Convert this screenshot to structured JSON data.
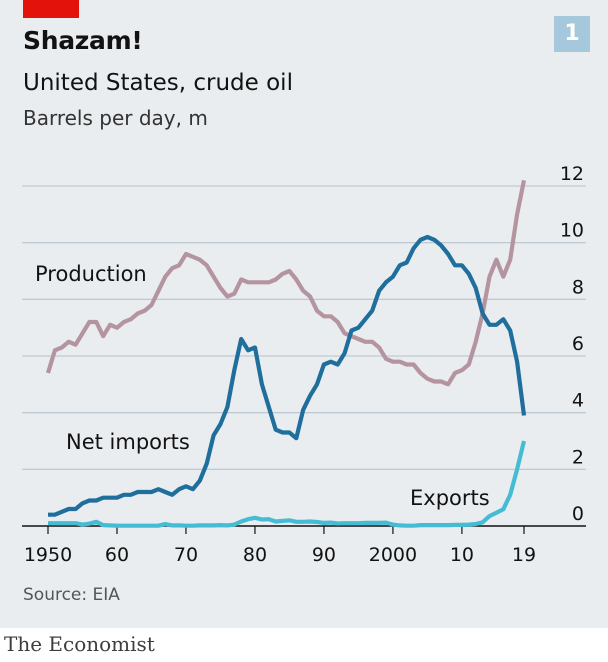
{
  "header": {
    "badge_number": "1",
    "title": "Shazam!",
    "subtitle": "United States, crude oil",
    "unit": "Barrels per day, m"
  },
  "footer": {
    "source": "Source: EIA",
    "brand": "The Economist"
  },
  "colors": {
    "background": "#e9edf0",
    "accent_tag": "#e3120b",
    "badge": "#a6c8dd",
    "production": "#b4949e",
    "net_imports": "#1f6e9c",
    "exports": "#45bcd4"
  },
  "chart_data": {
    "type": "line",
    "title": "Shazam!",
    "subtitle": "United States, crude oil",
    "ylabel": "Barrels per day, m",
    "xlim": [
      1950,
      2019
    ],
    "ylim": [
      0,
      12
    ],
    "x_ticks": [
      1950,
      1960,
      1970,
      1980,
      1990,
      2000,
      2010,
      2019
    ],
    "x_tick_labels": [
      "1950",
      "60",
      "70",
      "80",
      "90",
      "2000",
      "10",
      "19"
    ],
    "y_ticks": [
      0,
      2,
      4,
      6,
      8,
      10,
      12
    ],
    "y_tick_labels": [
      "0",
      "2",
      "4",
      "6",
      "8",
      "10",
      "12"
    ],
    "grid": true,
    "legend": "direct labels on lines",
    "series": [
      {
        "name": "Production",
        "color": "#b4949e",
        "x": [
          1950,
          1951,
          1952,
          1953,
          1954,
          1955,
          1956,
          1957,
          1958,
          1959,
          1960,
          1961,
          1962,
          1963,
          1964,
          1965,
          1966,
          1967,
          1968,
          1969,
          1970,
          1971,
          1972,
          1973,
          1974,
          1975,
          1976,
          1977,
          1978,
          1979,
          1980,
          1981,
          1982,
          1983,
          1984,
          1985,
          1986,
          1987,
          1988,
          1989,
          1990,
          1991,
          1992,
          1993,
          1994,
          1995,
          1996,
          1997,
          1998,
          1999,
          2000,
          2001,
          2002,
          2003,
          2004,
          2005,
          2006,
          2007,
          2008,
          2009,
          2010,
          2011,
          2012,
          2013,
          2014,
          2015,
          2016,
          2017,
          2018,
          2019
        ],
        "values": [
          5.4,
          6.2,
          6.3,
          6.5,
          6.4,
          6.8,
          7.2,
          7.2,
          6.7,
          7.1,
          7.0,
          7.2,
          7.3,
          7.5,
          7.6,
          7.8,
          8.3,
          8.8,
          9.1,
          9.2,
          9.6,
          9.5,
          9.4,
          9.2,
          8.8,
          8.4,
          8.1,
          8.2,
          8.7,
          8.6,
          8.6,
          8.6,
          8.6,
          8.7,
          8.9,
          9.0,
          8.7,
          8.3,
          8.1,
          7.6,
          7.4,
          7.4,
          7.2,
          6.8,
          6.7,
          6.6,
          6.5,
          6.5,
          6.3,
          5.9,
          5.8,
          5.8,
          5.7,
          5.7,
          5.4,
          5.2,
          5.1,
          5.1,
          5.0,
          5.4,
          5.5,
          5.7,
          6.5,
          7.5,
          8.8,
          9.4,
          8.8,
          9.4,
          11.0,
          12.2
        ]
      },
      {
        "name": "Net imports",
        "color": "#1f6e9c",
        "x": [
          1950,
          1951,
          1952,
          1953,
          1954,
          1955,
          1956,
          1957,
          1958,
          1959,
          1960,
          1961,
          1962,
          1963,
          1964,
          1965,
          1966,
          1967,
          1968,
          1969,
          1970,
          1971,
          1972,
          1973,
          1974,
          1975,
          1976,
          1977,
          1978,
          1979,
          1980,
          1981,
          1982,
          1983,
          1984,
          1985,
          1986,
          1987,
          1988,
          1989,
          1990,
          1991,
          1992,
          1993,
          1994,
          1995,
          1996,
          1997,
          1998,
          1999,
          2000,
          2001,
          2002,
          2003,
          2004,
          2005,
          2006,
          2007,
          2008,
          2009,
          2010,
          2011,
          2012,
          2013,
          2014,
          2015,
          2016,
          2017,
          2018,
          2019
        ],
        "values": [
          0.4,
          0.4,
          0.5,
          0.6,
          0.6,
          0.8,
          0.9,
          0.9,
          1.0,
          1.0,
          1.0,
          1.1,
          1.1,
          1.2,
          1.2,
          1.2,
          1.3,
          1.2,
          1.1,
          1.3,
          1.4,
          1.3,
          1.6,
          2.2,
          3.2,
          3.6,
          4.2,
          5.5,
          6.6,
          6.2,
          6.3,
          5.0,
          4.2,
          3.4,
          3.3,
          3.3,
          3.1,
          4.1,
          4.6,
          5.0,
          5.7,
          5.8,
          5.7,
          6.1,
          6.9,
          7.0,
          7.3,
          7.6,
          8.3,
          8.6,
          8.8,
          9.2,
          9.3,
          9.8,
          10.1,
          10.2,
          10.1,
          9.9,
          9.6,
          9.2,
          9.2,
          8.9,
          8.4,
          7.5,
          7.1,
          7.1,
          7.3,
          6.9,
          5.8,
          3.9
        ]
      },
      {
        "name": "Exports",
        "color": "#45bcd4",
        "x": [
          1950,
          1951,
          1952,
          1953,
          1954,
          1955,
          1956,
          1957,
          1958,
          1959,
          1960,
          1961,
          1962,
          1963,
          1964,
          1965,
          1966,
          1967,
          1968,
          1969,
          1970,
          1971,
          1972,
          1973,
          1974,
          1975,
          1976,
          1977,
          1978,
          1979,
          1980,
          1981,
          1982,
          1983,
          1984,
          1985,
          1986,
          1987,
          1988,
          1989,
          1990,
          1991,
          1992,
          1993,
          1994,
          1995,
          1996,
          1997,
          1998,
          1999,
          2000,
          2001,
          2002,
          2003,
          2004,
          2005,
          2006,
          2007,
          2008,
          2009,
          2010,
          2011,
          2012,
          2013,
          2014,
          2015,
          2016,
          2017,
          2018,
          2019
        ],
        "values": [
          0.1,
          0.1,
          0.1,
          0.1,
          0.1,
          0.05,
          0.08,
          0.15,
          0.03,
          0.02,
          0.01,
          0.01,
          0.01,
          0.01,
          0.01,
          0.01,
          0.01,
          0.07,
          0.02,
          0.02,
          0.01,
          0.01,
          0.02,
          0.02,
          0.02,
          0.03,
          0.02,
          0.05,
          0.16,
          0.24,
          0.29,
          0.23,
          0.24,
          0.16,
          0.18,
          0.2,
          0.15,
          0.15,
          0.16,
          0.14,
          0.11,
          0.12,
          0.09,
          0.1,
          0.1,
          0.1,
          0.11,
          0.11,
          0.11,
          0.12,
          0.05,
          0.02,
          0.01,
          0.01,
          0.03,
          0.03,
          0.03,
          0.03,
          0.03,
          0.04,
          0.04,
          0.05,
          0.07,
          0.13,
          0.35,
          0.47,
          0.59,
          1.1,
          2.0,
          3.0
        ]
      }
    ],
    "series_labels": [
      "Production",
      "Net imports",
      "Exports"
    ]
  }
}
